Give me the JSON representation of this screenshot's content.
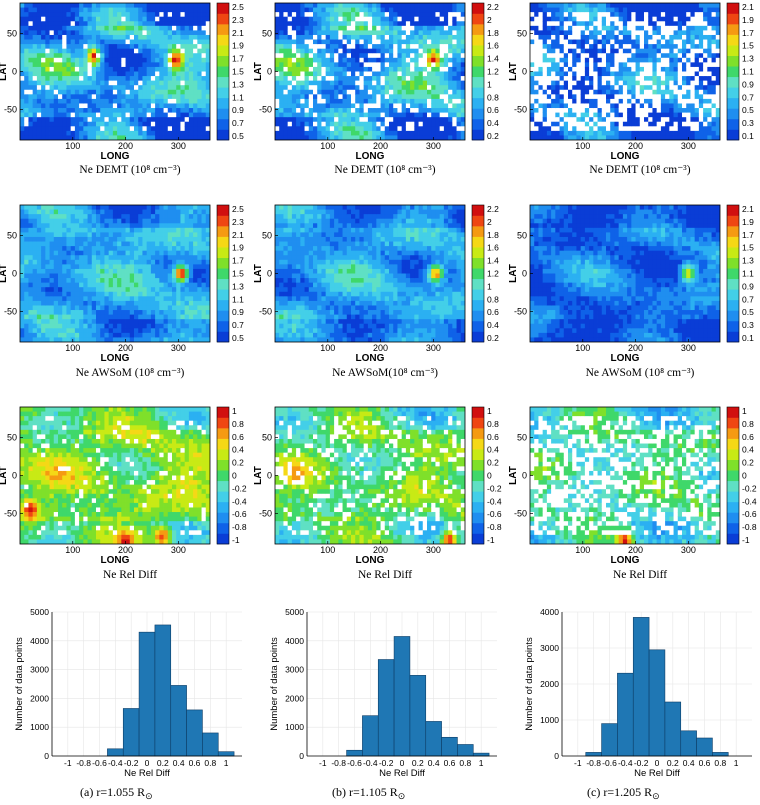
{
  "chart_data": [
    {
      "type": "heatmap",
      "row": 0,
      "col": 0,
      "xlabel": "LONG",
      "ylabel": "LAT",
      "caption": "Ne DEMT (10⁸ cm⁻³)",
      "xticks": [
        "100",
        "200",
        "300"
      ],
      "yticks": [
        "50",
        "0",
        "-50"
      ],
      "cbar_ticks": [
        "2.5",
        "2.3",
        "2.1",
        "1.9",
        "1.7",
        "1.5",
        "1.3",
        "1.1",
        "0.9",
        "0.7",
        "0.5"
      ],
      "cbar_range": [
        0.5,
        2.5
      ],
      "base_value": 1.0,
      "contrast": 0.9,
      "hotspots": [
        [
          140,
          20,
          2.4
        ],
        [
          295,
          15,
          2.5
        ]
      ],
      "gap_fraction": 0.08
    },
    {
      "type": "heatmap",
      "row": 0,
      "col": 1,
      "xlabel": "LONG",
      "ylabel": "LAT",
      "caption": "Ne DEMT (10⁸ cm⁻³)",
      "xticks": [
        "100",
        "200",
        "300"
      ],
      "yticks": [
        "50",
        "0",
        "-50"
      ],
      "cbar_ticks": [
        "2.2",
        "2",
        "1.8",
        "1.6",
        "1.4",
        "1.2",
        "1",
        "0.8",
        "0.6",
        "0.4",
        "0.2"
      ],
      "cbar_range": [
        0.2,
        2.2
      ],
      "base_value": 0.75,
      "contrast": 0.9,
      "hotspots": [
        [
          300,
          15,
          2.1
        ]
      ],
      "gap_fraction": 0.2
    },
    {
      "type": "heatmap",
      "row": 0,
      "col": 2,
      "xlabel": "LONG",
      "ylabel": "LAT",
      "caption": "Ne DEMT (10⁸ cm⁻³)",
      "xticks": [
        "100",
        "200",
        "300"
      ],
      "yticks": [
        "50",
        "0",
        "-50"
      ],
      "cbar_ticks": [
        "2.1",
        "1.9",
        "1.7",
        "1.5",
        "1.3",
        "1.1",
        "0.9",
        "0.7",
        "0.5",
        "0.3",
        "0.1"
      ],
      "cbar_range": [
        0.1,
        2.1
      ],
      "base_value": 0.45,
      "contrast": 0.7,
      "hotspots": [],
      "gap_fraction": 0.45
    },
    {
      "type": "heatmap",
      "row": 1,
      "col": 0,
      "xlabel": "LONG",
      "ylabel": "LAT",
      "caption": "Ne AWSoM (10⁸ cm⁻³)",
      "xticks": [
        "100",
        "200",
        "300"
      ],
      "yticks": [
        "50",
        "0",
        "-50"
      ],
      "cbar_ticks": [
        "2.5",
        "2.3",
        "2.1",
        "1.9",
        "1.7",
        "1.5",
        "1.3",
        "1.1",
        "0.9",
        "0.7",
        "0.5"
      ],
      "cbar_range": [
        0.5,
        2.5
      ],
      "base_value": 1.05,
      "contrast": 0.6,
      "hotspots": [
        [
          305,
          0,
          2.4
        ]
      ],
      "gap_fraction": 0
    },
    {
      "type": "heatmap",
      "row": 1,
      "col": 1,
      "xlabel": "LONG",
      "ylabel": "LAT",
      "caption": "Ne AWSoM(10⁸ cm⁻³)",
      "xticks": [
        "100",
        "200",
        "300"
      ],
      "yticks": [
        "50",
        "0",
        "-50"
      ],
      "cbar_ticks": [
        "2.2",
        "2",
        "1.8",
        "1.6",
        "1.4",
        "1.2",
        "1",
        "0.8",
        "0.6",
        "0.4",
        "0.2"
      ],
      "cbar_range": [
        0.2,
        2.2
      ],
      "base_value": 0.7,
      "contrast": 0.6,
      "hotspots": [
        [
          305,
          0,
          1.9
        ]
      ],
      "gap_fraction": 0
    },
    {
      "type": "heatmap",
      "row": 1,
      "col": 2,
      "xlabel": "LONG",
      "ylabel": "LAT",
      "caption": "Ne AWSoM (10⁸ cm⁻³)",
      "xticks": [
        "100",
        "200",
        "300"
      ],
      "yticks": [
        "50",
        "0",
        "-50"
      ],
      "cbar_ticks": [
        "2.1",
        "1.9",
        "1.7",
        "1.5",
        "1.3",
        "1.1",
        "0.9",
        "0.7",
        "0.5",
        "0.3",
        "0.1"
      ],
      "cbar_range": [
        0.1,
        2.1
      ],
      "base_value": 0.4,
      "contrast": 0.5,
      "hotspots": [
        [
          300,
          0,
          1.5
        ]
      ],
      "gap_fraction": 0
    },
    {
      "type": "heatmap",
      "row": 2,
      "col": 0,
      "xlabel": "LONG",
      "ylabel": "LAT",
      "caption": "Ne Rel Diff",
      "xticks": [
        "100",
        "200",
        "300"
      ],
      "yticks": [
        "50",
        "0",
        "-50"
      ],
      "cbar_ticks": [
        "1",
        "0.8",
        "0.6",
        "0.4",
        "0.2",
        "0",
        "-0.2",
        "-0.4",
        "-0.6",
        "-0.8",
        "-1"
      ],
      "cbar_range": [
        -1,
        1
      ],
      "base_value": 0.15,
      "contrast": 0.5,
      "hotspots": [
        [
          20,
          -45,
          0.95
        ],
        [
          200,
          -85,
          0.9
        ],
        [
          270,
          -80,
          0.85
        ]
      ],
      "gap_fraction": 0.1
    },
    {
      "type": "heatmap",
      "row": 2,
      "col": 1,
      "xlabel": "LONG",
      "ylabel": "LAT",
      "caption": "Ne Rel Diff",
      "xticks": [
        "100",
        "200",
        "300"
      ],
      "yticks": [
        "50",
        "0",
        "-50"
      ],
      "cbar_ticks": [
        "1",
        "0.8",
        "0.6",
        "0.4",
        "0.2",
        "0",
        "-0.2",
        "-0.4",
        "-0.6",
        "-0.8",
        "-1"
      ],
      "cbar_range": [
        -1,
        1
      ],
      "base_value": 0.05,
      "contrast": 0.5,
      "hotspots": [
        [
          330,
          -85,
          0.9
        ],
        [
          40,
          0,
          0.7
        ]
      ],
      "gap_fraction": 0.2
    },
    {
      "type": "heatmap",
      "row": 2,
      "col": 2,
      "xlabel": "LONG",
      "ylabel": "LAT",
      "caption": "Ne Rel Diff",
      "xticks": [
        "100",
        "200",
        "300"
      ],
      "yticks": [
        "50",
        "0",
        "-50"
      ],
      "cbar_ticks": [
        "1",
        "0.8",
        "0.6",
        "0.4",
        "0.2",
        "0",
        "-0.2",
        "-0.4",
        "-0.6",
        "-0.8",
        "-1"
      ],
      "cbar_range": [
        -1,
        1
      ],
      "base_value": -0.1,
      "contrast": 0.45,
      "hotspots": [
        [
          180,
          -85,
          0.9
        ]
      ],
      "gap_fraction": 0.4
    },
    {
      "type": "bar",
      "row": 3,
      "col": 0,
      "xlabel": "Ne Rel Diff",
      "ylabel": "Number of data points",
      "caption_label": "(a) r=1.055",
      "caption_unit": "R",
      "caption_symbol": "⊙",
      "bin_centers": [
        -0.4,
        -0.2,
        0,
        0.2,
        0.4,
        0.6,
        0.8,
        1.0
      ],
      "bin_width": 0.2,
      "values": [
        250,
        1650,
        4300,
        4550,
        2450,
        1600,
        800,
        150
      ],
      "ylim": [
        0,
        5000
      ],
      "yticks": [
        "0",
        "1000",
        "2000",
        "3000",
        "4000",
        "5000"
      ],
      "xlim": [
        -1.2,
        1.2
      ],
      "xticks": [
        "-1",
        "-0.8",
        "-0.6",
        "-0.4",
        "-0.2",
        "0",
        "0.2",
        "0.4",
        "0.6",
        "0.8",
        "1"
      ]
    },
    {
      "type": "bar",
      "row": 3,
      "col": 1,
      "xlabel": "Ne Rel Diff",
      "ylabel": "Number of data points",
      "caption_label": "(b) r=1.105",
      "caption_unit": "R",
      "caption_symbol": "⊙",
      "bin_centers": [
        -0.6,
        -0.4,
        -0.2,
        0,
        0.2,
        0.4,
        0.6,
        0.8,
        1.0
      ],
      "bin_width": 0.2,
      "values": [
        200,
        1400,
        3350,
        4150,
        2800,
        1200,
        650,
        400,
        100
      ],
      "ylim": [
        0,
        5000
      ],
      "yticks": [
        "0",
        "1000",
        "2000",
        "3000",
        "4000",
        "5000"
      ],
      "xlim": [
        -1.2,
        1.2
      ],
      "xticks": [
        "-1",
        "-0.8",
        "-0.6",
        "-0.4",
        "-0.2",
        "0",
        "0.2",
        "0.4",
        "0.6",
        "0.8",
        "1"
      ]
    },
    {
      "type": "bar",
      "row": 3,
      "col": 2,
      "xlabel": "Ne Rel Diff",
      "ylabel": "Number of data points",
      "caption_label": "(c) r=1.205",
      "caption_unit": "R",
      "caption_symbol": "⊙",
      "bin_centers": [
        -0.8,
        -0.6,
        -0.4,
        -0.2,
        0,
        0.2,
        0.4,
        0.6,
        0.8
      ],
      "bin_width": 0.2,
      "values": [
        100,
        900,
        2300,
        3850,
        2950,
        1500,
        700,
        500,
        100
      ],
      "ylim": [
        0,
        4000
      ],
      "yticks": [
        "0",
        "1000",
        "2000",
        "3000",
        "4000"
      ],
      "xlim": [
        -1.2,
        1.2
      ],
      "xticks": [
        "-1",
        "-0.8",
        "-0.6",
        "-0.4",
        "-0.2",
        "0",
        "0.2",
        "0.4",
        "0.6",
        "0.8",
        "1"
      ]
    }
  ],
  "colors": {
    "bar_fill": "#1f77b4",
    "bar_edge": "#0d3d66",
    "gap": "#ffffff",
    "text": "#000000",
    "grid": "#e6e6e6"
  }
}
